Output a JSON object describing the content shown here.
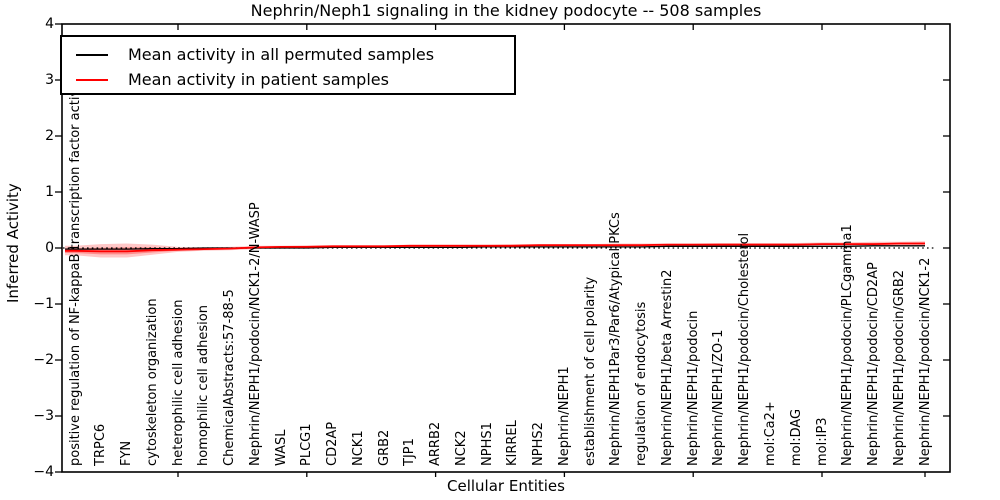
{
  "chart_data": {
    "type": "line",
    "title": "Nephrin/Neph1 signaling in the kidney podocyte -- 508 samples",
    "xlabel": "Cellular Entities",
    "ylabel": "Inferred Activity",
    "ylim": [
      -4,
      4
    ],
    "y_ticks": [
      4,
      3,
      2,
      1,
      0,
      -1,
      -2,
      -3,
      -4
    ],
    "grid": false,
    "legend_position": "upper left",
    "zero_line": {
      "value": 0,
      "style": "dotted",
      "color": "#000000"
    },
    "categories": [
      "positive regulation of NF-kappaB transcription factor activity",
      "TRPC6",
      "FYN",
      "cytoskeleton organization",
      "heterophilic cell adhesion",
      "homophilic cell adhesion",
      "ChemicalAbstracts:57-88-5",
      "Nephrin/NEPH1/podocin/NCK1-2/N-WASP",
      "WASL",
      "PLCG1",
      "CD2AP",
      "NCK1",
      "GRB2",
      "TJP1",
      "ARRB2",
      "NCK2",
      "NPHS1",
      "KIRREL",
      "NPHS2",
      "Nephrin/NEPH1",
      "establishment of cell polarity",
      "Nephrin/NEPH1Par3/Par6/Atypical PKCs",
      "regulation of endocytosis",
      "Nephrin/NEPH1/beta Arrestin2",
      "Nephrin/NEPH1/podocin",
      "Nephrin/NEPH1/ZO-1",
      "Nephrin/NEPH1/podocin/Cholesterol",
      "mol:Ca2+",
      "mol:DAG",
      "mol:IP3",
      "Nephrin/NEPH1/podocin/PLCgamma1",
      "Nephrin/NEPH1/podocin/CD2AP",
      "Nephrin/NEPH1/podocin/GRB2",
      "Nephrin/NEPH1/podocin/NCK1-2"
    ],
    "series": [
      {
        "name": "Mean activity in all permuted samples",
        "color": "#000000",
        "values": [
          -0.02,
          -0.02,
          -0.02,
          -0.01,
          -0.01,
          0.0,
          0.0,
          0.0,
          0.0,
          0.0,
          0.01,
          0.01,
          0.01,
          0.01,
          0.01,
          0.01,
          0.02,
          0.02,
          0.02,
          0.02,
          0.02,
          0.02,
          0.02,
          0.03,
          0.03,
          0.03,
          0.03,
          0.03,
          0.03,
          0.03,
          0.03,
          0.04,
          0.04,
          0.04
        ]
      },
      {
        "name": "Mean activity in patient samples",
        "color": "#ff0000",
        "values": [
          -0.05,
          -0.06,
          -0.06,
          -0.04,
          -0.03,
          -0.02,
          -0.01,
          0.01,
          0.02,
          0.02,
          0.03,
          0.03,
          0.03,
          0.04,
          0.04,
          0.04,
          0.04,
          0.04,
          0.05,
          0.05,
          0.05,
          0.05,
          0.05,
          0.06,
          0.06,
          0.06,
          0.06,
          0.06,
          0.06,
          0.07,
          0.07,
          0.07,
          0.08,
          0.08
        ]
      }
    ],
    "patient_band": {
      "fill": "#ff0000",
      "upper": [
        0.04,
        0.07,
        0.08,
        0.06,
        0.02,
        0.01,
        0.02,
        0.04,
        0.04,
        0.05,
        0.05,
        0.05,
        0.05,
        0.06,
        0.06,
        0.06,
        0.06,
        0.07,
        0.07,
        0.07,
        0.07,
        0.08,
        0.08,
        0.08,
        0.08,
        0.09,
        0.09,
        0.09,
        0.09,
        0.1,
        0.1,
        0.11,
        0.11,
        0.12
      ],
      "lower": [
        -0.13,
        -0.17,
        -0.17,
        -0.12,
        -0.07,
        -0.05,
        -0.04,
        -0.02,
        -0.01,
        0.0,
        0.0,
        0.01,
        0.01,
        0.01,
        0.01,
        0.02,
        0.02,
        0.02,
        0.02,
        0.02,
        0.02,
        0.03,
        0.03,
        0.03,
        0.03,
        0.03,
        0.03,
        0.03,
        0.04,
        0.04,
        0.04,
        0.04,
        0.05,
        0.05
      ]
    }
  }
}
